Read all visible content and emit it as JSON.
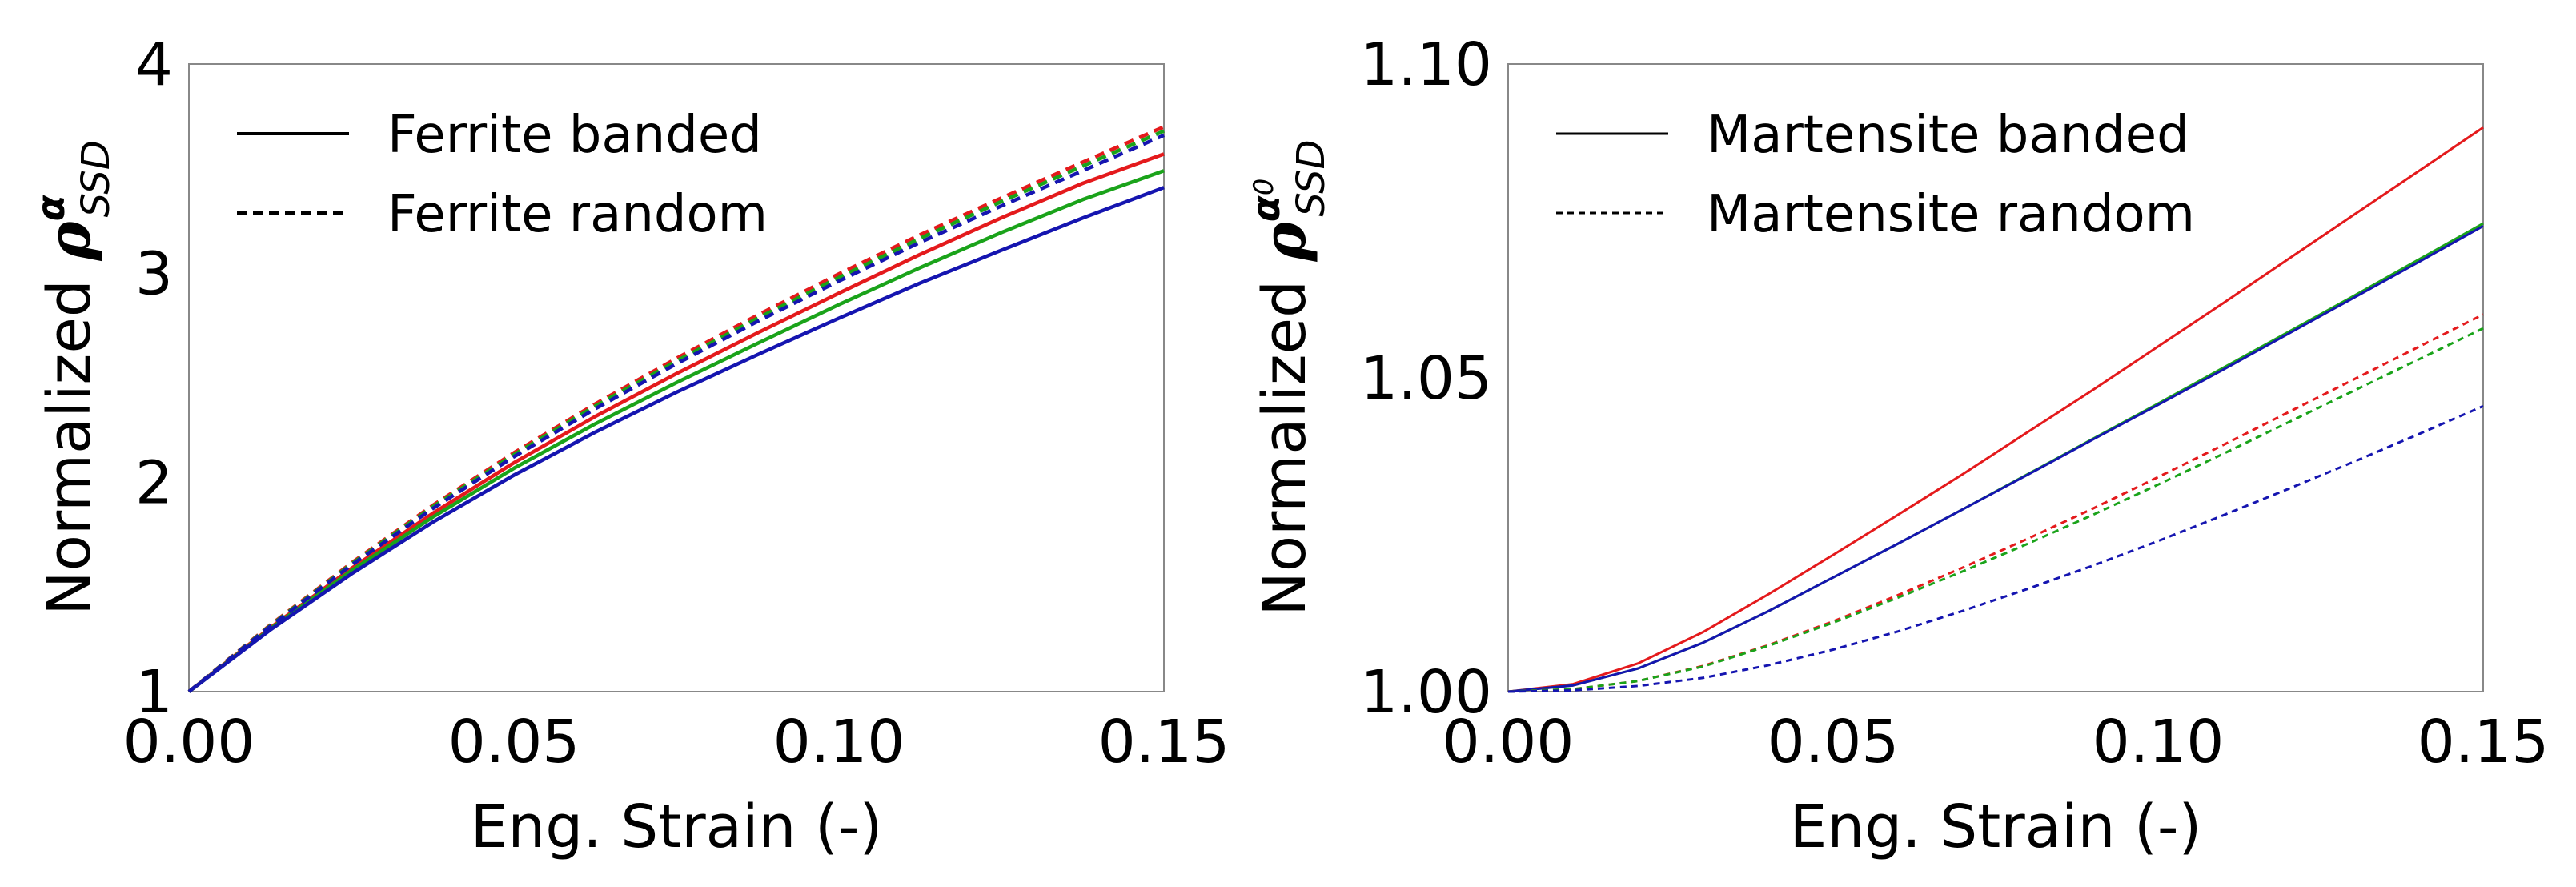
{
  "chart_data": [
    {
      "type": "line",
      "id": "left",
      "xlabel": "Eng. Strain (-)",
      "ylabel": {
        "prefix": "Normalized ",
        "symbol": "ρ",
        "superscript": "α",
        "superscript2": "",
        "subscript": "SSD"
      },
      "xlim": [
        0,
        0.15
      ],
      "ylim": [
        1,
        4
      ],
      "xticks": [
        0,
        0.05,
        0.1,
        0.15
      ],
      "xtick_labels": [
        "0.00",
        "0.05",
        "0.10",
        "0.15"
      ],
      "yticks": [
        1,
        2,
        3,
        4
      ],
      "ytick_labels": [
        "1",
        "2",
        "3",
        "4"
      ],
      "grid": false,
      "legend": {
        "location": "top-left",
        "entries": [
          {
            "label": "Ferrite banded",
            "style": "solid"
          },
          {
            "label": "Ferrite random",
            "style": "dashed"
          }
        ]
      },
      "x": [
        0,
        0.0125,
        0.025,
        0.0375,
        0.05,
        0.0625,
        0.075,
        0.0875,
        0.1,
        0.1125,
        0.125,
        0.1375,
        0.15
      ],
      "series": [
        {
          "name": "banded-red",
          "color": "#e41a1c",
          "style": "solid",
          "values": [
            1.0,
            1.305,
            1.589,
            1.852,
            2.094,
            2.315,
            2.52,
            2.715,
            2.905,
            3.09,
            3.265,
            3.43,
            3.57
          ]
        },
        {
          "name": "banded-green",
          "color": "#1aa31a",
          "style": "solid",
          "values": [
            1.0,
            1.3,
            1.578,
            1.834,
            2.068,
            2.28,
            2.477,
            2.665,
            2.85,
            3.027,
            3.195,
            3.352,
            3.49
          ]
        },
        {
          "name": "banded-blue",
          "color": "#1515b0",
          "style": "solid",
          "values": [
            1.0,
            1.295,
            1.563,
            1.81,
            2.035,
            2.24,
            2.431,
            2.611,
            2.785,
            2.953,
            3.11,
            3.264,
            3.41
          ]
        },
        {
          "name": "random-red",
          "color": "#e41a1c",
          "style": "dashed",
          "values": [
            1.0,
            1.318,
            1.615,
            1.89,
            2.142,
            2.375,
            2.593,
            2.8,
            2.997,
            3.184,
            3.36,
            3.531,
            3.7
          ]
        },
        {
          "name": "random-green",
          "color": "#1aa31a",
          "style": "dashed",
          "values": [
            1.0,
            1.315,
            1.61,
            1.883,
            2.133,
            2.365,
            2.58,
            2.785,
            2.98,
            3.167,
            3.343,
            3.512,
            3.68
          ]
        },
        {
          "name": "random-blue",
          "color": "#1515b0",
          "style": "dashed",
          "values": [
            1.0,
            1.312,
            1.605,
            1.875,
            2.123,
            2.352,
            2.567,
            2.77,
            2.963,
            3.148,
            3.322,
            3.49,
            3.66
          ]
        }
      ]
    },
    {
      "type": "line",
      "id": "right",
      "xlabel": "Eng. Strain (-)",
      "ylabel": {
        "prefix": "Normalized ",
        "symbol": "ρ",
        "superscript": "α",
        "superscript2": "0",
        "subscript": "SSD"
      },
      "xlim": [
        0,
        0.15
      ],
      "ylim": [
        1.0,
        1.1
      ],
      "xticks": [
        0,
        0.05,
        0.1,
        0.15
      ],
      "xtick_labels": [
        "0.00",
        "0.05",
        "0.10",
        "0.15"
      ],
      "yticks": [
        1.0,
        1.05,
        1.1
      ],
      "ytick_labels": [
        "1.00",
        "1.05",
        "1.10"
      ],
      "grid": false,
      "legend": {
        "location": "top-left",
        "entries": [
          {
            "label": "Martensite banded",
            "style": "solid"
          },
          {
            "label": "Martensite random",
            "style": "dashed"
          }
        ]
      },
      "x": [
        0,
        0.01,
        0.02,
        0.03,
        0.04,
        0.05,
        0.06,
        0.07,
        0.08,
        0.09,
        0.1,
        0.11,
        0.12,
        0.13,
        0.14,
        0.15
      ],
      "series": [
        {
          "name": "banded-red",
          "color": "#e41a1c",
          "style": "solid",
          "values": [
            1.0,
            1.0012,
            1.0045,
            1.0095,
            1.0155,
            1.0218,
            1.0282,
            1.0347,
            1.0414,
            1.0481,
            1.055,
            1.0619,
            1.0689,
            1.0759,
            1.0829,
            1.0899
          ]
        },
        {
          "name": "banded-green",
          "color": "#1aa31a",
          "style": "solid",
          "values": [
            1.0,
            1.001,
            1.0037,
            1.0078,
            1.0128,
            1.0182,
            1.0236,
            1.0291,
            1.0347,
            1.0403,
            1.0459,
            1.0516,
            1.0573,
            1.063,
            1.0688,
            1.0746
          ]
        },
        {
          "name": "banded-blue",
          "color": "#1515b0",
          "style": "solid",
          "values": [
            1.0,
            1.001,
            1.0037,
            1.0078,
            1.0128,
            1.0182,
            1.0236,
            1.0291,
            1.0346,
            1.0402,
            1.0457,
            1.0513,
            1.057,
            1.0627,
            1.0684,
            1.0742
          ]
        },
        {
          "name": "random-red",
          "color": "#e41a1c",
          "style": "dashed",
          "values": [
            1.0,
            1.0004,
            1.0017,
            1.0041,
            1.0074,
            1.0112,
            1.0154,
            1.0198,
            1.0244,
            1.0292,
            1.0342,
            1.0393,
            1.0445,
            1.0497,
            1.0549,
            1.0601
          ]
        },
        {
          "name": "random-green",
          "color": "#1aa31a",
          "style": "dashed",
          "values": [
            1.0,
            1.0004,
            1.0017,
            1.004,
            1.0073,
            1.011,
            1.015,
            1.0192,
            1.0236,
            1.0282,
            1.033,
            1.0379,
            1.0429,
            1.0479,
            1.0529,
            1.0579
          ]
        },
        {
          "name": "random-blue",
          "color": "#1515b0",
          "style": "dashed",
          "values": [
            1.0,
            1.0002,
            1.0009,
            1.0022,
            1.0042,
            1.0067,
            1.0096,
            1.0129,
            1.0164,
            1.0201,
            1.024,
            1.0281,
            1.0323,
            1.0366,
            1.041,
            1.0455
          ]
        }
      ]
    }
  ]
}
